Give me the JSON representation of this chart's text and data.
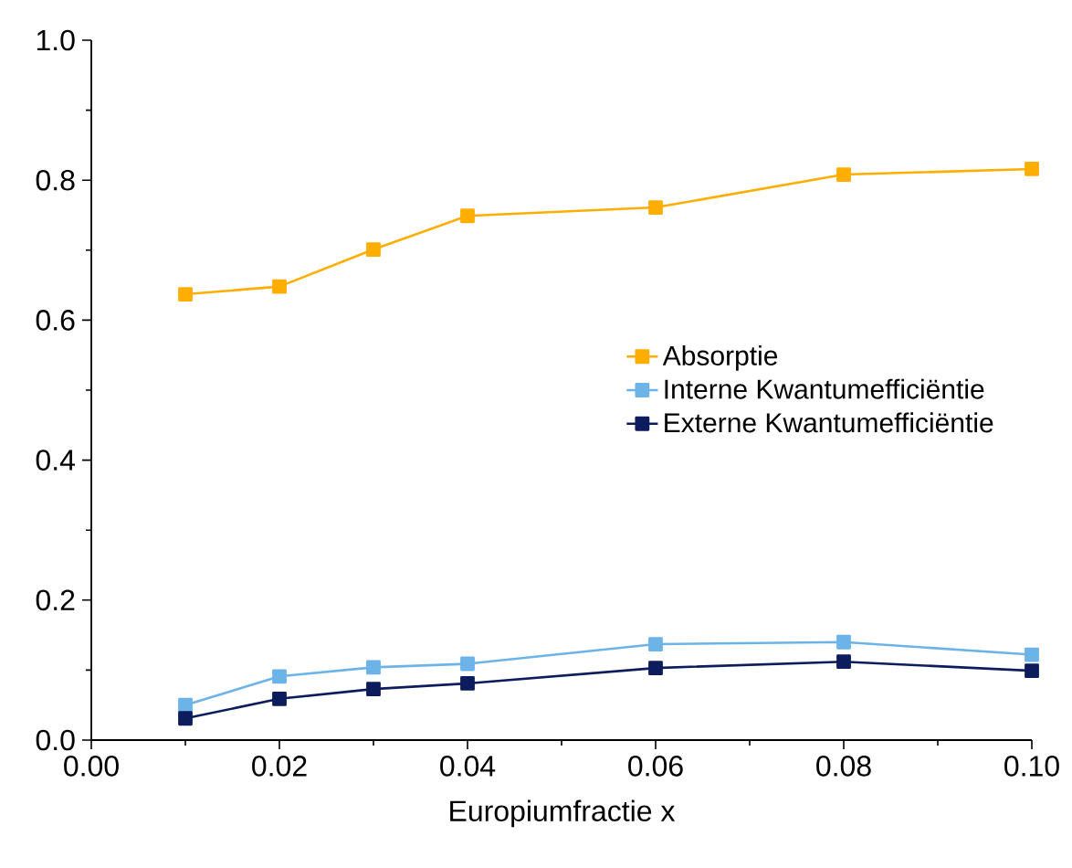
{
  "chart_data": {
    "type": "line",
    "xlabel": "Europiumfractie x",
    "x": [
      0.01,
      0.02,
      0.03,
      0.04,
      0.06,
      0.08,
      0.1
    ],
    "series": [
      {
        "name": "Absorptie",
        "color": "#ffae00",
        "values": [
          0.637,
          0.648,
          0.701,
          0.749,
          0.761,
          0.808,
          0.816
        ]
      },
      {
        "name": "Interne Kwantumefficiëntie",
        "color": "#6cb4e8",
        "values": [
          0.05,
          0.091,
          0.104,
          0.109,
          0.137,
          0.14,
          0.122
        ]
      },
      {
        "name": "Externe Kwantumefficiëntie",
        "color": "#0c1c5c",
        "values": [
          0.031,
          0.059,
          0.073,
          0.081,
          0.103,
          0.112,
          0.099
        ]
      }
    ],
    "xlim": [
      0,
      0.1
    ],
    "xticks": [
      {
        "value": 0,
        "label": "0.00"
      },
      0.02,
      0.04,
      0.06,
      0.08,
      {
        "value": 0.1,
        "label": "0.10"
      }
    ],
    "ylim": [
      0,
      1.0
    ],
    "yticks": [
      {
        "value": 0,
        "label": "0.0"
      },
      0.2,
      0.4,
      0.6,
      0.8,
      {
        "value": 1.0,
        "label": "1.0"
      }
    ],
    "legend": "right",
    "marker": "square",
    "line_style": "solid",
    "grid": false
  }
}
